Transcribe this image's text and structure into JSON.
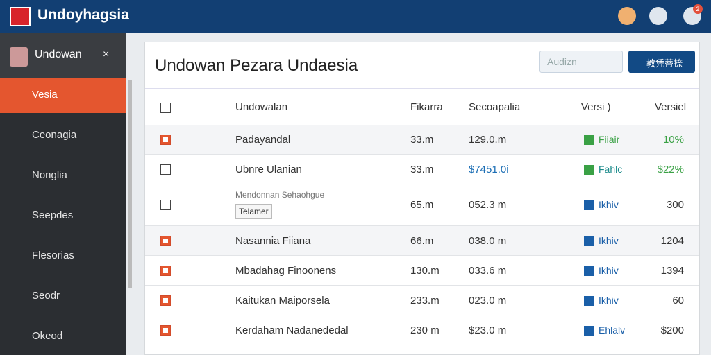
{
  "header": {
    "title": "Undoyhagsia",
    "badge": "2"
  },
  "sidebar": {
    "user": "Undowan",
    "items": [
      "Vesia",
      "Ceonagia",
      "Nonglia",
      "Seepdes",
      "Flesorias",
      "Seodr",
      "Okeod"
    ],
    "active": 0
  },
  "panel": {
    "title": "Undowan Pezara Undaesia",
    "search_placeholder": "Audizn",
    "button": "教凭蒂捺"
  },
  "table": {
    "columns": [
      "Undowalan",
      "Fikarra",
      "Secoapalia",
      "Versi )",
      "Versiel"
    ],
    "rows": [
      {
        "checked": true,
        "name": "Padayandal",
        "fikarra": "33.m",
        "secoapalia": "129.0.m",
        "versi": "Fiiair",
        "versiel": "10%"
      },
      {
        "checked": false,
        "name": "Ubnre Ulanian",
        "fikarra": "33.m",
        "secoapalia": "$7451.0i",
        "versi": "Fahlc",
        "versiel": "$22%"
      },
      {
        "checked": false,
        "name": "Mendonnan Sehaohgue",
        "select": "Telamer",
        "fikarra": "65.m",
        "secoapalia": "052.3 m",
        "versi": "Ikhiv",
        "versiel": "300"
      },
      {
        "checked": true,
        "name": "Nasannia Fiiana",
        "fikarra": "66.m",
        "secoapalia": "038.0 m",
        "versi": "Ikhiv",
        "versiel": "1204"
      },
      {
        "checked": true,
        "name": "Mbadahag Finoonens",
        "fikarra": "130.m",
        "secoapalia": "033.6 m",
        "versi": "Ikhiv",
        "versiel": "1394"
      },
      {
        "checked": true,
        "name": "Kaitukan Maiporsela",
        "fikarra": "233.m",
        "secoapalia": "023.0 m",
        "versi": "Ikhiv",
        "versiel": "60"
      },
      {
        "checked": true,
        "name": "Kerdaham Nadanededal",
        "fikarra": "230 m",
        "secoapalia": "$23.0 m",
        "versi": "Ehlalv",
        "versiel": "$200"
      }
    ]
  }
}
